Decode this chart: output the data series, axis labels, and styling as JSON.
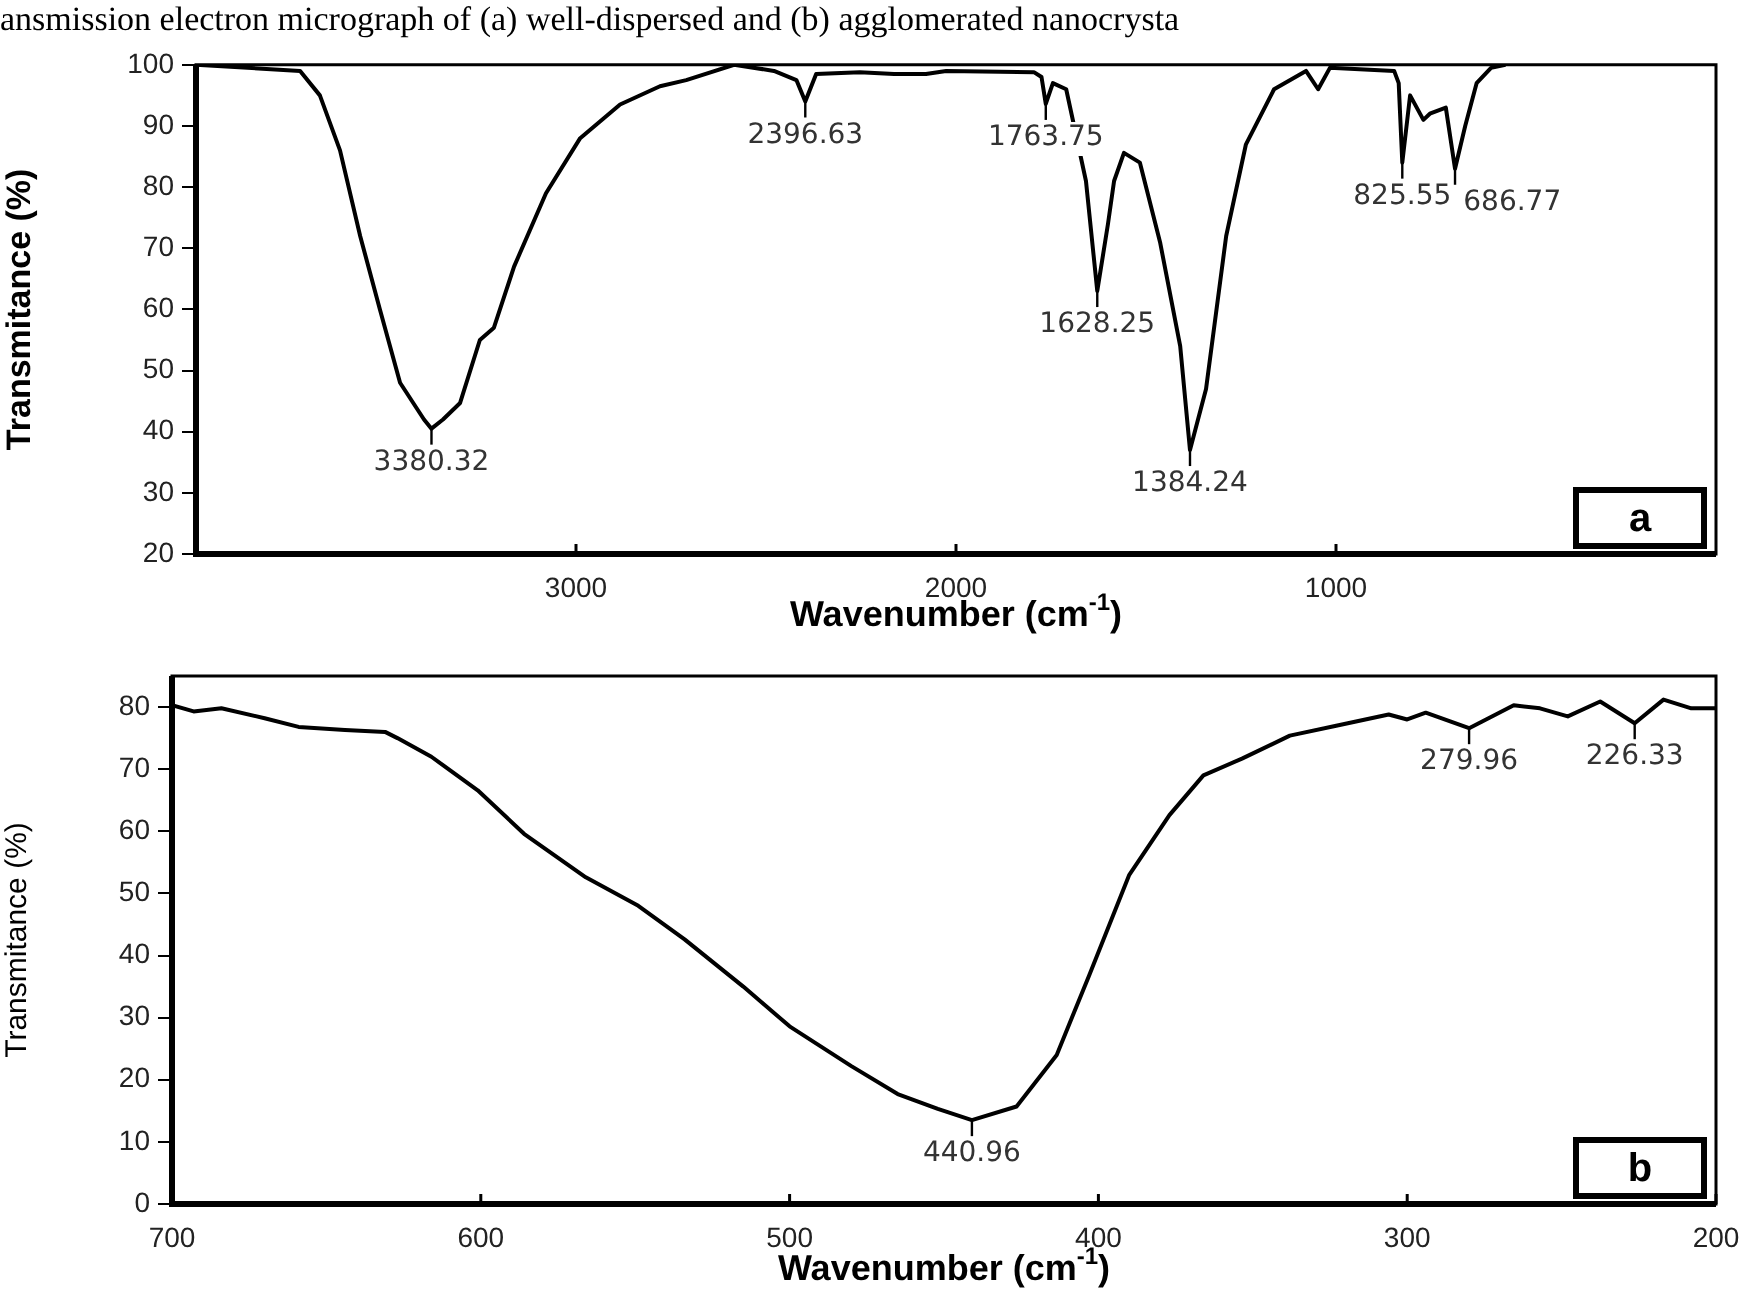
{
  "chart_data": [
    {
      "type": "line",
      "title": "ansmission electron micrograph of (a) well-dispersed and (b) agglomerated  nanocrysta",
      "xlabel": "Wavenumber (cm$^{-1}$)",
      "ylabel": "Transmitance (%)",
      "color": "#000000",
      "x": [
        4000,
        3726,
        3674,
        3621,
        3568,
        3516,
        3463,
        3400,
        3380.32,
        3350,
        3305,
        3253,
        3216,
        3163,
        3079,
        2989,
        2884,
        2779,
        2710,
        2584,
        2479,
        2420,
        2396.63,
        2368,
        2253,
        2163,
        2079,
        2026,
        1795,
        1775,
        1763.75,
        1745,
        1710,
        1658,
        1628.25,
        1600,
        1584,
        1558,
        1516,
        1463,
        1410,
        1384.24,
        1342,
        1289,
        1237,
        1163,
        1079,
        1047,
        1016,
        847,
        835,
        825.55,
        805,
        770,
        753,
        711,
        686.77,
        660,
        630,
        592,
        554
      ],
      "values": [
        100,
        99,
        95,
        86,
        72,
        60,
        48,
        42,
        40.5,
        42,
        44.7,
        55,
        57,
        67,
        79,
        88,
        93.5,
        96.5,
        97.5,
        100,
        99,
        97.5,
        94,
        98.5,
        98.8,
        98.5,
        98.5,
        99,
        98.8,
        98,
        93.6,
        97,
        96,
        81,
        63,
        74,
        81,
        85.6,
        84,
        71,
        54,
        37,
        47,
        72,
        87,
        96,
        99,
        96,
        99.5,
        99,
        97,
        84,
        95,
        91,
        92,
        93,
        83,
        90,
        97,
        99.5,
        100
      ],
      "xlim": [
        4000,
        0
      ],
      "xticks": [
        3000,
        2000,
        1000
      ],
      "ylim": [
        20,
        100
      ],
      "yticks": [
        20,
        30,
        40,
        50,
        60,
        70,
        80,
        90,
        100
      ],
      "legend": false,
      "annotations": [
        "a",
        {
          "text": "3380.32",
          "x": 3380.32,
          "y": 40.5
        },
        {
          "text": "2396.63",
          "x": 2396.63,
          "y": 94
        },
        {
          "text": "1763.75",
          "x": 1763.75,
          "y": 93.6
        },
        {
          "text": "1628.25",
          "x": 1628.25,
          "y": 63
        },
        {
          "text": "1384.24",
          "x": 1384.24,
          "y": 37
        },
        {
          "text": "825.55",
          "x": 825.55,
          "y": 84
        },
        {
          "text": "686.77",
          "x": 686.77,
          "y": 83
        }
      ]
    },
    {
      "type": "line",
      "xlabel": "Wavenumber (cm$^{-1}$)",
      "ylabel": "Transmitance (%)",
      "color": "#000000",
      "x": [
        700,
        693,
        684,
        670,
        659,
        644,
        631,
        627,
        616,
        601,
        586,
        566,
        549,
        534,
        515,
        500,
        480,
        465,
        452,
        440.96,
        426.5,
        413.5,
        403,
        390,
        377,
        366,
        353.5,
        338,
        323,
        306,
        300,
        294,
        279.96,
        265.5,
        257,
        248,
        237.5,
        226.33,
        217,
        208,
        200
      ],
      "values": [
        80.3,
        79.3,
        79.8,
        78.2,
        76.8,
        76.3,
        76,
        75,
        72,
        66.6,
        59.6,
        52.6,
        48,
        42.6,
        35,
        28.6,
        22.2,
        17.7,
        15.3,
        13.5,
        15.7,
        24,
        36.8,
        53,
        62.6,
        69,
        71.7,
        75.4,
        77,
        78.8,
        78,
        79.1,
        76.6,
        80.3,
        79.8,
        78.5,
        80.9,
        77.4,
        81.2,
        79.8,
        79.8
      ],
      "xlim": [
        700,
        200
      ],
      "xticks": [
        700,
        600,
        500,
        400,
        300,
        200
      ],
      "ylim": [
        0,
        85
      ],
      "yticks": [
        0,
        10,
        20,
        30,
        40,
        50,
        60,
        70,
        80
      ],
      "legend": false,
      "annotations": [
        "b",
        {
          "text": "440.96",
          "x": 440.96,
          "y": 13.5
        },
        {
          "text": "279.96",
          "x": 279.96,
          "y": 76.6
        },
        {
          "text": "226.33",
          "x": 226.33,
          "y": 77.4
        }
      ]
    }
  ]
}
